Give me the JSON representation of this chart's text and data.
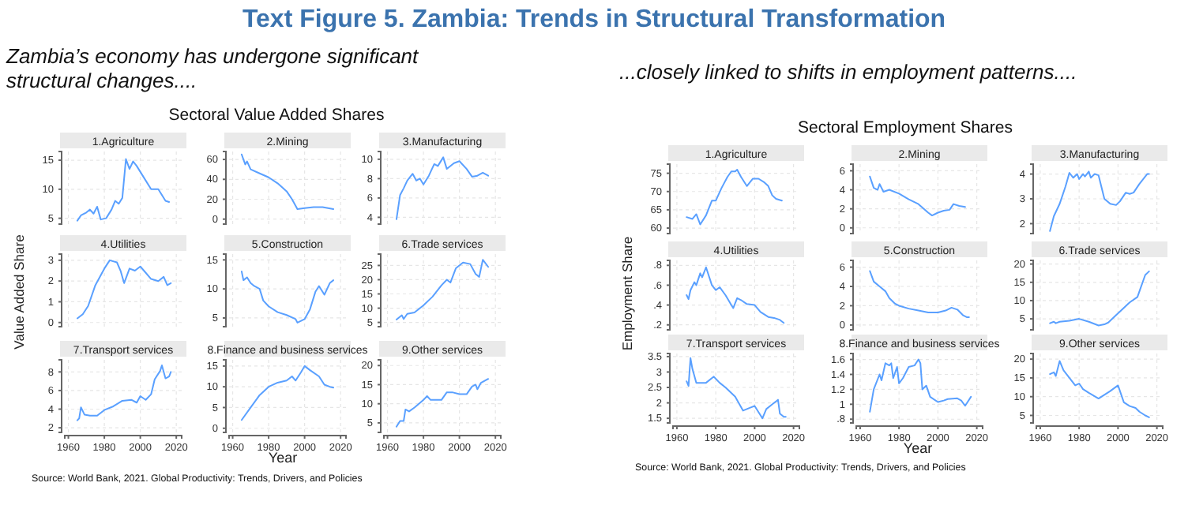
{
  "chart_data": [
    {
      "type": "other",
      "title": "Text Figure 5. Zambia: Trends in Structural Transformation",
      "annotations": [
        "Zambia’s economy has undergone significant structural changes....",
        "...closely linked to shifts in employment patterns....",
        "Sectoral Value Added Shares",
        "Sectoral Employment Shares",
        "Source: World Bank, 2021. Global Productivity: Trends, Drivers, and Policies",
        "Source: World Bank, 2021. Global Productivity: Trends, Drivers, and Policies"
      ]
    },
    {
      "type": "line",
      "title": "1.Agriculture",
      "color": "#5aa0ff",
      "grid": true,
      "tick_labels": "y",
      "xlim": [
        1958,
        2023
      ],
      "xticks": [
        1960,
        1980,
        2000,
        2020
      ],
      "ylim": [
        4,
        16.5
      ],
      "yticks": [
        5,
        10,
        15
      ],
      "x": [
        1965,
        1967,
        1970,
        1972,
        1974,
        1976,
        1978,
        1981,
        1984,
        1986,
        1988,
        1990,
        1992,
        1994,
        1996,
        1998,
        2002,
        2006,
        2010,
        2014,
        2016
      ],
      "values": [
        4.6,
        5.5,
        6.0,
        6.5,
        5.8,
        7.0,
        4.8,
        5.0,
        6.5,
        8.0,
        7.5,
        8.5,
        15.2,
        13.5,
        14.8,
        14.0,
        12.0,
        10.0,
        10.0,
        8.0,
        7.8
      ]
    },
    {
      "type": "line",
      "title": "2.Mining",
      "color": "#5aa0ff",
      "grid": true,
      "tick_labels": "y",
      "xlim": [
        1958,
        2023
      ],
      "xticks": [
        1960,
        1980,
        2000,
        2020
      ],
      "ylim": [
        -5,
        68
      ],
      "yticks": [
        0,
        20,
        40,
        60
      ],
      "x": [
        1965,
        1967,
        1968,
        1970,
        1975,
        1980,
        1985,
        1990,
        1993,
        1996,
        2000,
        2005,
        2010,
        2013,
        2016
      ],
      "values": [
        65,
        55,
        58,
        50,
        46,
        42,
        36,
        28,
        20,
        10,
        11,
        12,
        12,
        11,
        10
      ]
    },
    {
      "type": "line",
      "title": "3.Manufacturing",
      "color": "#5aa0ff",
      "grid": true,
      "tick_labels": "y",
      "xlim": [
        1958,
        2023
      ],
      "xticks": [
        1960,
        1980,
        2000,
        2020
      ],
      "ylim": [
        3.3,
        10.8
      ],
      "yticks": [
        4,
        6,
        8,
        10
      ],
      "x": [
        1965,
        1967,
        1969,
        1971,
        1974,
        1976,
        1978,
        1980,
        1983,
        1986,
        1988,
        1991,
        1993,
        1997,
        2000,
        2004,
        2007,
        2010,
        2013,
        2016
      ],
      "values": [
        3.8,
        6.3,
        7.0,
        7.8,
        8.5,
        7.8,
        8.0,
        7.4,
        8.3,
        9.5,
        9.3,
        10.2,
        9.0,
        9.6,
        9.8,
        9.0,
        8.2,
        8.3,
        8.6,
        8.3
      ]
    },
    {
      "type": "line",
      "title": "4.Utilities",
      "ylabel": "Value Added Share",
      "color": "#5aa0ff",
      "grid": true,
      "tick_labels": "y",
      "xlim": [
        1958,
        2023
      ],
      "xticks": [
        1960,
        1980,
        2000,
        2020
      ],
      "ylim": [
        -0.2,
        3.3
      ],
      "yticks": [
        0,
        1,
        2,
        3
      ],
      "x": [
        1965,
        1968,
        1971,
        1975,
        1980,
        1983,
        1987,
        1989,
        1991,
        1994,
        1997,
        2000,
        2002,
        2006,
        2010,
        2013,
        2015,
        2017
      ],
      "values": [
        0.2,
        0.4,
        0.8,
        1.8,
        2.6,
        3.0,
        2.9,
        2.5,
        1.9,
        2.6,
        2.5,
        2.7,
        2.5,
        2.1,
        2.0,
        2.2,
        1.8,
        1.9
      ]
    },
    {
      "type": "line",
      "title": "5.Construction",
      "color": "#5aa0ff",
      "grid": true,
      "tick_labels": "y",
      "xlim": [
        1958,
        2023
      ],
      "xticks": [
        1960,
        1980,
        2000,
        2020
      ],
      "ylim": [
        3.5,
        16
      ],
      "yticks": [
        5,
        10,
        15
      ],
      "x": [
        1965,
        1966,
        1968,
        1970,
        1972,
        1975,
        1977,
        1980,
        1985,
        1990,
        1995,
        1996,
        2000,
        2003,
        2006,
        2008,
        2011,
        2014,
        2016
      ],
      "values": [
        13,
        11.5,
        12,
        11,
        10.5,
        10,
        8,
        7,
        6,
        5.5,
        4.8,
        4.2,
        4.8,
        6.5,
        9.5,
        10.5,
        9,
        11,
        11.5
      ]
    },
    {
      "type": "line",
      "title": "6.Trade services",
      "color": "#5aa0ff",
      "grid": true,
      "tick_labels": "y",
      "xlim": [
        1958,
        2023
      ],
      "xticks": [
        1960,
        1980,
        2000,
        2020
      ],
      "ylim": [
        3.5,
        29
      ],
      "yticks": [
        5,
        10,
        15,
        20,
        25
      ],
      "x": [
        1965,
        1968,
        1969,
        1971,
        1975,
        1980,
        1985,
        1990,
        1993,
        1995,
        1998,
        2002,
        2006,
        2009,
        2011,
        2013,
        2016
      ],
      "values": [
        6,
        7.5,
        6.2,
        8,
        8.5,
        11,
        14,
        18,
        20,
        19,
        24,
        26,
        25.5,
        22,
        21,
        27,
        24.5
      ]
    },
    {
      "type": "line",
      "title": "7.Transport services",
      "color": "#5aa0ff",
      "grid": true,
      "xlim": [
        1958,
        2023
      ],
      "xticks": [
        1960,
        1980,
        2000,
        2020
      ],
      "ylim": [
        1.5,
        9.3
      ],
      "yticks": [
        2,
        4,
        6,
        8
      ],
      "x": [
        1965,
        1966,
        1967,
        1969,
        1972,
        1976,
        1980,
        1985,
        1990,
        1995,
        1998,
        2000,
        2003,
        2006,
        2008,
        2011,
        2012,
        2014,
        2016,
        2017
      ],
      "values": [
        2.8,
        3.0,
        4.2,
        3.4,
        3.3,
        3.3,
        3.9,
        4.3,
        4.9,
        5.0,
        4.7,
        5.4,
        5.0,
        5.6,
        7.2,
        8.1,
        8.7,
        7.3,
        7.5,
        8.0
      ]
    },
    {
      "type": "line",
      "title": "8.Finance and business services",
      "xlabel": "Year",
      "color": "#5aa0ff",
      "grid": true,
      "xlim": [
        1958,
        2023
      ],
      "xticks": [
        1960,
        1980,
        2000,
        2020
      ],
      "ylim": [
        -1,
        16.5
      ],
      "yticks": [
        0,
        5,
        10,
        15
      ],
      "x": [
        1965,
        1970,
        1975,
        1980,
        1985,
        1990,
        1993,
        1995,
        1998,
        2000,
        2003,
        2008,
        2011,
        2014,
        2016
      ],
      "values": [
        2,
        5,
        8,
        10,
        11,
        11.5,
        12.5,
        11.5,
        13.5,
        15,
        14,
        12.5,
        10.5,
        10,
        9.8
      ]
    },
    {
      "type": "line",
      "title": "9.Other services",
      "color": "#5aa0ff",
      "grid": true,
      "xlim": [
        1958,
        2023
      ],
      "xticks": [
        1960,
        1980,
        2000,
        2020
      ],
      "ylim": [
        2.5,
        21.5
      ],
      "yticks": [
        5,
        10,
        15,
        20
      ],
      "x": [
        1965,
        1967,
        1969,
        1970,
        1972,
        1975,
        1980,
        1982,
        1984,
        1990,
        1993,
        1996,
        2000,
        2004,
        2007,
        2009,
        2010,
        2012,
        2014,
        2016
      ],
      "values": [
        4,
        5.5,
        5.5,
        8.5,
        8,
        9,
        11,
        12,
        11,
        11,
        13,
        13,
        12.5,
        12.5,
        14.5,
        15,
        13.8,
        15.5,
        16,
        16.5
      ]
    },
    {
      "type": "line",
      "title": "1.Agriculture",
      "color": "#5aa0ff",
      "grid": true,
      "tick_labels": "y",
      "xlim": [
        1958,
        2023
      ],
      "xticks": [
        1960,
        1980,
        2000,
        2020
      ],
      "ylim": [
        58.5,
        77.5
      ],
      "yticks": [
        60,
        65,
        70,
        75
      ],
      "x": [
        1965,
        1968,
        1970,
        1972,
        1975,
        1978,
        1980,
        1983,
        1986,
        1988,
        1990,
        1991,
        1993,
        1996,
        1999,
        2002,
        2005,
        2007,
        2009,
        2011,
        2014
      ],
      "values": [
        63,
        62.5,
        63.8,
        61,
        63.5,
        67.5,
        67.5,
        71,
        74,
        75.5,
        75.5,
        76,
        74,
        71.5,
        73.5,
        73.5,
        72.5,
        71.5,
        69,
        68,
        67.5
      ]
    },
    {
      "type": "line",
      "title": "2.Mining",
      "color": "#5aa0ff",
      "grid": true,
      "tick_labels": "y",
      "xlim": [
        1958,
        2023
      ],
      "xticks": [
        1960,
        1980,
        2000,
        2020
      ],
      "ylim": [
        -0.6,
        6.7
      ],
      "yticks": [
        0,
        2,
        4,
        6
      ],
      "x": [
        1965,
        1967,
        1969,
        1970,
        1972,
        1975,
        1980,
        1985,
        1990,
        1995,
        1997,
        2000,
        2003,
        2006,
        2008,
        2011,
        2014
      ],
      "values": [
        5.4,
        4.2,
        4.0,
        4.6,
        3.8,
        4.0,
        3.6,
        3.0,
        2.5,
        1.6,
        1.3,
        1.6,
        1.8,
        1.9,
        2.5,
        2.3,
        2.2
      ]
    },
    {
      "type": "line",
      "title": "3.Manufacturing",
      "color": "#5aa0ff",
      "grid": true,
      "tick_labels": "y",
      "xlim": [
        1958,
        2023
      ],
      "xticks": [
        1960,
        1980,
        2000,
        2020
      ],
      "ylim": [
        1.6,
        4.4
      ],
      "yticks": [
        2,
        3,
        4
      ],
      "x": [
        1965,
        1967,
        1970,
        1973,
        1975,
        1977,
        1979,
        1980,
        1982,
        1983,
        1985,
        1986,
        1988,
        1990,
        1993,
        1996,
        1999,
        2001,
        2004,
        2006,
        2008,
        2011,
        2013,
        2015,
        2016
      ],
      "values": [
        1.7,
        2.3,
        2.8,
        3.5,
        4.05,
        3.85,
        4.0,
        3.8,
        4.0,
        3.9,
        4.1,
        3.85,
        4.0,
        3.95,
        3.0,
        2.8,
        2.75,
        2.9,
        3.25,
        3.2,
        3.25,
        3.6,
        3.8,
        4.0,
        4.0
      ]
    },
    {
      "type": "line",
      "title": "4.Utilities",
      "ylabel": "Employment Share",
      "color": "#5aa0ff",
      "grid": true,
      "tick_labels": "y",
      "xlim": [
        1958,
        2023
      ],
      "xticks": [
        1960,
        1980,
        2000,
        2020
      ],
      "ylim": [
        0.15,
        0.85
      ],
      "yticks": [
        {
          "value": 0.2,
          "label": ".2"
        },
        {
          "value": 0.4,
          "label": ".4"
        },
        {
          "value": 0.6,
          "label": ".6"
        },
        {
          "value": 0.8,
          "label": ".8"
        }
      ],
      "x": [
        1965,
        1966,
        1967,
        1969,
        1970,
        1972,
        1973,
        1975,
        1978,
        1980,
        1982,
        1985,
        1988,
        1989,
        1991,
        1993,
        1996,
        2000,
        2003,
        2007,
        2010,
        2013,
        2015
      ],
      "values": [
        0.5,
        0.46,
        0.55,
        0.63,
        0.6,
        0.72,
        0.68,
        0.78,
        0.6,
        0.55,
        0.58,
        0.5,
        0.4,
        0.37,
        0.47,
        0.45,
        0.41,
        0.4,
        0.33,
        0.28,
        0.27,
        0.25,
        0.22
      ]
    },
    {
      "type": "line",
      "title": "5.Construction",
      "color": "#5aa0ff",
      "grid": true,
      "tick_labels": "y",
      "xlim": [
        1958,
        2023
      ],
      "xticks": [
        1960,
        1980,
        2000,
        2020
      ],
      "ylim": [
        -0.5,
        6.7
      ],
      "yticks": [
        0,
        2,
        4,
        6
      ],
      "x": [
        1965,
        1967,
        1970,
        1973,
        1975,
        1978,
        1980,
        1985,
        1990,
        1995,
        2000,
        2004,
        2007,
        2010,
        2013,
        2015,
        2016
      ],
      "values": [
        5.6,
        4.5,
        4.0,
        3.5,
        2.8,
        2.2,
        2.0,
        1.7,
        1.5,
        1.3,
        1.3,
        1.5,
        1.8,
        1.6,
        1.0,
        0.8,
        0.8
      ]
    },
    {
      "type": "line",
      "title": "6.Trade services",
      "color": "#5aa0ff",
      "grid": true,
      "tick_labels": "y",
      "xlim": [
        1958,
        2023
      ],
      "xticks": [
        1960,
        1980,
        2000,
        2020
      ],
      "ylim": [
        2,
        21
      ],
      "yticks": [
        5,
        10,
        15,
        20
      ],
      "x": [
        1965,
        1967,
        1968,
        1970,
        1975,
        1980,
        1985,
        1990,
        1993,
        1995,
        1998,
        2002,
        2006,
        2010,
        2012,
        2014,
        2016
      ],
      "values": [
        3.8,
        4.2,
        3.8,
        4.2,
        4.5,
        5.0,
        4.2,
        3.2,
        3.5,
        4.0,
        5.5,
        7.5,
        9.5,
        11,
        14,
        17,
        18
      ]
    },
    {
      "type": "line",
      "title": "7.Transport services",
      "color": "#5aa0ff",
      "grid": true,
      "xlim": [
        1958,
        2023
      ],
      "xticks": [
        1960,
        1980,
        2000,
        2020
      ],
      "ylim": [
        1.35,
        3.6
      ],
      "yticks": [
        1.5,
        2,
        2.5,
        3,
        3.5
      ],
      "x": [
        1965,
        1966,
        1967,
        1968,
        1970,
        1975,
        1979,
        1982,
        1985,
        1990,
        1994,
        1996,
        1998,
        2000,
        2003,
        2004,
        2006,
        2009,
        2012,
        2013,
        2015,
        2016
      ],
      "values": [
        2.7,
        2.55,
        3.45,
        3.1,
        2.65,
        2.65,
        2.85,
        2.65,
        2.5,
        2.2,
        1.75,
        1.8,
        1.85,
        1.9,
        1.6,
        1.5,
        1.8,
        1.95,
        2.1,
        1.65,
        1.55,
        1.55
      ]
    },
    {
      "type": "line",
      "title": "8.Finance and business services",
      "xlabel": "Year",
      "color": "#5aa0ff",
      "grid": true,
      "xlim": [
        1958,
        2023
      ],
      "xticks": [
        1960,
        1980,
        2000,
        2020
      ],
      "ylim": [
        0.75,
        1.68
      ],
      "yticks": [
        {
          "value": 0.8,
          "label": ".8"
        },
        1,
        1.2,
        1.4,
        1.6
      ],
      "x": [
        1965,
        1967,
        1970,
        1971,
        1973,
        1975,
        1976,
        1977,
        1979,
        1980,
        1982,
        1985,
        1988,
        1990,
        1991,
        1992,
        1994,
        1996,
        2000,
        2003,
        2005,
        2010,
        2012,
        2014,
        2015,
        2017
      ],
      "values": [
        0.9,
        1.2,
        1.4,
        1.32,
        1.55,
        1.52,
        1.55,
        1.35,
        1.5,
        1.28,
        1.35,
        1.5,
        1.52,
        1.6,
        1.55,
        1.2,
        1.25,
        1.1,
        1.03,
        1.05,
        1.07,
        1.08,
        1.05,
        0.98,
        1.02,
        1.1
      ]
    },
    {
      "type": "line",
      "title": "9.Other services",
      "color": "#5aa0ff",
      "grid": true,
      "xlim": [
        1958,
        2023
      ],
      "xticks": [
        1960,
        1980,
        2000,
        2020
      ],
      "ylim": [
        3,
        21.5
      ],
      "yticks": [
        5,
        10,
        15,
        20
      ],
      "x": [
        1965,
        1967,
        1968,
        1970,
        1972,
        1975,
        1978,
        1980,
        1982,
        1985,
        1990,
        1993,
        1996,
        2000,
        2003,
        2006,
        2009,
        2011,
        2014,
        2016
      ],
      "values": [
        16,
        16.5,
        15.5,
        19.5,
        17,
        15,
        13,
        13.5,
        12,
        11,
        9.5,
        10.5,
        11.5,
        13,
        8.5,
        7.5,
        7.0,
        6,
        5,
        4.5
      ]
    }
  ]
}
